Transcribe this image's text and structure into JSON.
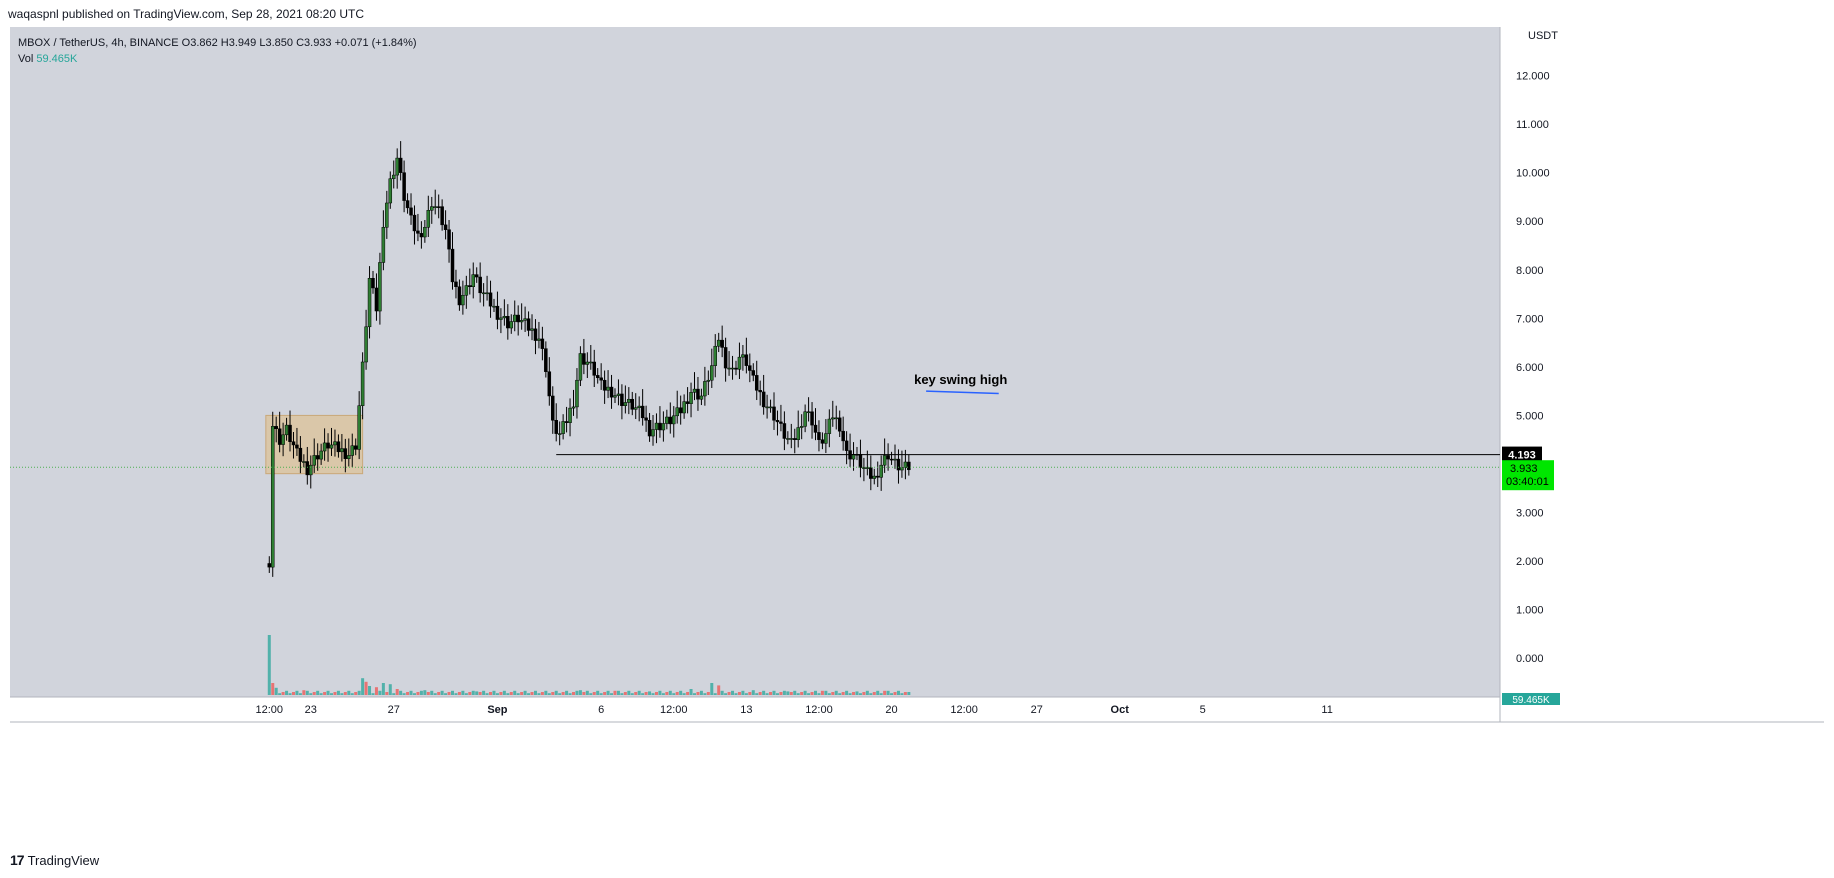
{
  "header": {
    "published_line": "waqaspnl published on TradingView.com, Sep 28, 2021 08:20 UTC"
  },
  "legend": {
    "symbol": "MBOX / TetherUS, 4h, BINANCE",
    "o_label": "O",
    "o": "3.862",
    "h_label": "H",
    "h": "3.949",
    "l_label": "L",
    "l": "3.850",
    "c_label": "C",
    "c": "3.933",
    "change": "+0.071 (+1.84%)",
    "vol_label": "Vol",
    "vol_value": "59.465K"
  },
  "footer": {
    "brand": "TradingView",
    "logo_glyph": "17"
  },
  "colors": {
    "background": "#d1d4dc",
    "up": "#26a69a",
    "down": "#ef5350",
    "candle_up_body": "#2e7d32",
    "candle_down_body": "#000000",
    "swing_line": "#2962ff",
    "support_line": "#000000",
    "box_fill": "#dcc4a0",
    "price_tag": "#00e600"
  },
  "chart_data": {
    "type": "candlestick",
    "currency_label": "USDT",
    "y_ticks": [
      "12.000",
      "11.000",
      "10.000",
      "9.000",
      "8.000",
      "7.000",
      "6.000",
      "5.000",
      "4.000",
      "3.000",
      "2.000",
      "1.000",
      "0.000"
    ],
    "ylim": [
      -0.8,
      13.0
    ],
    "x_ticks": [
      {
        "label": "12:00",
        "x": 0
      },
      {
        "label": "23",
        "x": 12
      },
      {
        "label": "27",
        "x": 36
      },
      {
        "label": "Sep",
        "x": 66
      },
      {
        "label": "6",
        "x": 96
      },
      {
        "label": "12:00",
        "x": 117
      },
      {
        "label": "13",
        "x": 138
      },
      {
        "label": "12:00",
        "x": 159
      },
      {
        "label": "20",
        "x": 180
      },
      {
        "label": "12:00",
        "x": 201
      },
      {
        "label": "27",
        "x": 222
      },
      {
        "label": "Oct",
        "x": 246
      },
      {
        "label": "5",
        "x": 270
      },
      {
        "label": "11",
        "x": 306
      }
    ],
    "xlim": [
      -75,
      356
    ],
    "price_path": [
      [
        0,
        2.0
      ],
      [
        1,
        4.8
      ],
      [
        3,
        4.5
      ],
      [
        5,
        4.7
      ],
      [
        8,
        4.2
      ],
      [
        11,
        3.9
      ],
      [
        14,
        4.2
      ],
      [
        17,
        4.4
      ],
      [
        20,
        4.3
      ],
      [
        23,
        4.2
      ],
      [
        25,
        4.4
      ],
      [
        27,
        6.0
      ],
      [
        29,
        7.8
      ],
      [
        31,
        7.2
      ],
      [
        33,
        9.0
      ],
      [
        35,
        9.8
      ],
      [
        37,
        10.3
      ],
      [
        39,
        9.5
      ],
      [
        41,
        9.0
      ],
      [
        43,
        8.7
      ],
      [
        45,
        8.9
      ],
      [
        47,
        9.4
      ],
      [
        49,
        9.2
      ],
      [
        51,
        8.8
      ],
      [
        53,
        7.8
      ],
      [
        55,
        7.4
      ],
      [
        57,
        7.6
      ],
      [
        59,
        7.9
      ],
      [
        61,
        7.6
      ],
      [
        63,
        7.4
      ],
      [
        66,
        7.1
      ],
      [
        69,
        6.9
      ],
      [
        72,
        7.0
      ],
      [
        75,
        6.8
      ],
      [
        78,
        6.6
      ],
      [
        80,
        6.0
      ],
      [
        82,
        4.8
      ],
      [
        84,
        4.6
      ],
      [
        86,
        4.9
      ],
      [
        88,
        5.3
      ],
      [
        90,
        6.2
      ],
      [
        92,
        6.1
      ],
      [
        94,
        5.9
      ],
      [
        96,
        5.6
      ],
      [
        99,
        5.5
      ],
      [
        102,
        5.3
      ],
      [
        105,
        5.2
      ],
      [
        108,
        5.0
      ],
      [
        110,
        4.7
      ],
      [
        113,
        4.8
      ],
      [
        116,
        4.9
      ],
      [
        119,
        5.1
      ],
      [
        122,
        5.5
      ],
      [
        125,
        5.4
      ],
      [
        128,
        6.0
      ],
      [
        130,
        6.6
      ],
      [
        132,
        6.1
      ],
      [
        134,
        5.9
      ],
      [
        136,
        6.2
      ],
      [
        138,
        6.1
      ],
      [
        140,
        5.7
      ],
      [
        143,
        5.3
      ],
      [
        146,
        5.0
      ],
      [
        149,
        4.6
      ],
      [
        151,
        4.4
      ],
      [
        153,
        4.7
      ],
      [
        155,
        5.1
      ],
      [
        157,
        4.9
      ],
      [
        159,
        4.4
      ],
      [
        161,
        4.6
      ],
      [
        163,
        5.0
      ],
      [
        165,
        4.8
      ],
      [
        167,
        4.2
      ],
      [
        169,
        4.2
      ],
      [
        171,
        4.0
      ],
      [
        173,
        3.8
      ],
      [
        175,
        3.7
      ],
      [
        177,
        4.0
      ],
      [
        179,
        4.2
      ],
      [
        181,
        4.0
      ],
      [
        183,
        3.9
      ],
      [
        185,
        3.93
      ]
    ],
    "price_lines": [
      {
        "label": "4.193",
        "value": 4.193,
        "from_x": 83,
        "style": "solid"
      },
      {
        "label": "3.933",
        "value": 3.933,
        "from_x": 0,
        "style": "dotted"
      }
    ],
    "countdown": "03:40:01",
    "annotations": [
      {
        "type": "text",
        "text": "key swing high",
        "x": 200,
        "y": 5.65
      },
      {
        "type": "segment",
        "name": "swing-line",
        "x1": 190,
        "y1": 5.5,
        "x2": 211,
        "y2": 5.45
      },
      {
        "type": "rect",
        "name": "range-box",
        "x1": -1,
        "x2": 27,
        "y1": 3.8,
        "y2": 5.0
      }
    ],
    "volume": {
      "label": "59.465K",
      "spikes": [
        [
          0,
          1.0
        ],
        [
          1,
          0.2
        ],
        [
          2,
          0.12
        ],
        [
          10,
          0.08
        ],
        [
          20,
          0.07
        ],
        [
          27,
          0.28
        ],
        [
          28,
          0.22
        ],
        [
          29,
          0.15
        ],
        [
          31,
          0.13
        ],
        [
          33,
          0.2
        ],
        [
          35,
          0.18
        ],
        [
          37,
          0.1
        ],
        [
          45,
          0.08
        ],
        [
          60,
          0.06
        ],
        [
          80,
          0.07
        ],
        [
          90,
          0.08
        ],
        [
          100,
          0.07
        ],
        [
          110,
          0.06
        ],
        [
          122,
          0.1
        ],
        [
          128,
          0.2
        ],
        [
          130,
          0.16
        ],
        [
          140,
          0.08
        ],
        [
          150,
          0.06
        ],
        [
          160,
          0.07
        ],
        [
          170,
          0.06
        ],
        [
          178,
          0.07
        ],
        [
          185,
          0.05
        ]
      ]
    }
  }
}
